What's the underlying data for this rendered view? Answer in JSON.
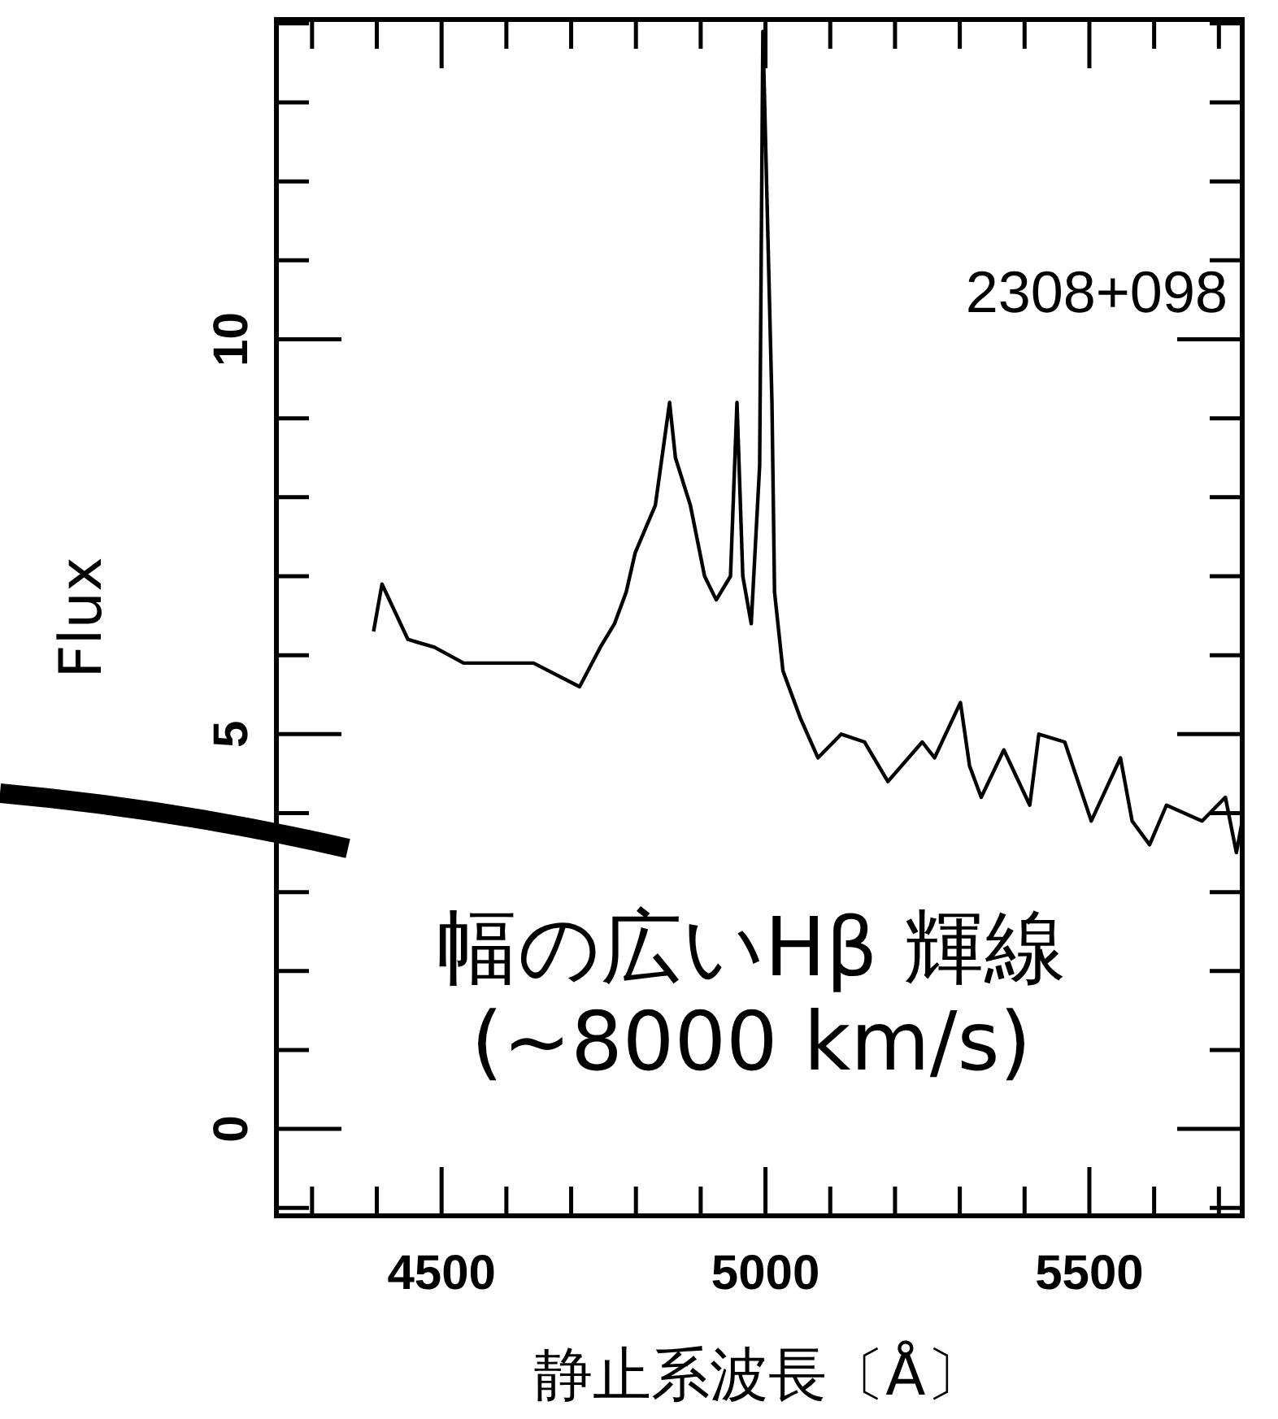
{
  "chart_data": {
    "type": "line",
    "xlabel": "静止系波長〔Å〕",
    "ylabel": "Flux",
    "annotations": [
      "2308+098",
      "幅の広いHβ 輝線",
      "(~8000 km/s)"
    ],
    "xlim": [
      4245,
      5736
    ],
    "ylim": [
      -1.1,
      14.05
    ],
    "xticks": [
      4500,
      5000,
      5500
    ],
    "yticks": [
      0,
      5,
      10
    ],
    "series": [
      {
        "color": "#000000",
        "x": [
          4395,
          4408,
          4448,
          4489,
          4534,
          4597,
          4642,
          4713,
          4745,
          4767,
          4785,
          4799,
          4830,
          4852,
          4861,
          4884,
          4906,
          4924,
          4946,
          4956,
          4965,
          4978,
          4991,
          4996,
          5010,
          5014,
          5027,
          5054,
          5081,
          5117,
          5153,
          5189,
          5242,
          5261,
          5301,
          5315,
          5333,
          5368,
          5408,
          5422,
          5462,
          5503,
          5548,
          5566,
          5593,
          5619,
          5674,
          5710,
          5727,
          5736
        ],
        "values": [
          6.3,
          6.9,
          6.2,
          6.1,
          5.9,
          5.9,
          5.9,
          5.6,
          6.1,
          6.4,
          6.8,
          7.3,
          7.9,
          9.2,
          8.5,
          7.9,
          7.0,
          6.7,
          7.0,
          9.2,
          7.0,
          6.4,
          8.4,
          13.9,
          9.2,
          6.8,
          5.8,
          5.2,
          4.7,
          5.0,
          4.9,
          4.4,
          4.9,
          4.7,
          5.4,
          4.6,
          4.2,
          4.8,
          4.1,
          5.0,
          4.9,
          3.9,
          4.7,
          3.9,
          3.6,
          4.1,
          3.9,
          4.2,
          3.5,
          3.9
        ]
      }
    ]
  }
}
